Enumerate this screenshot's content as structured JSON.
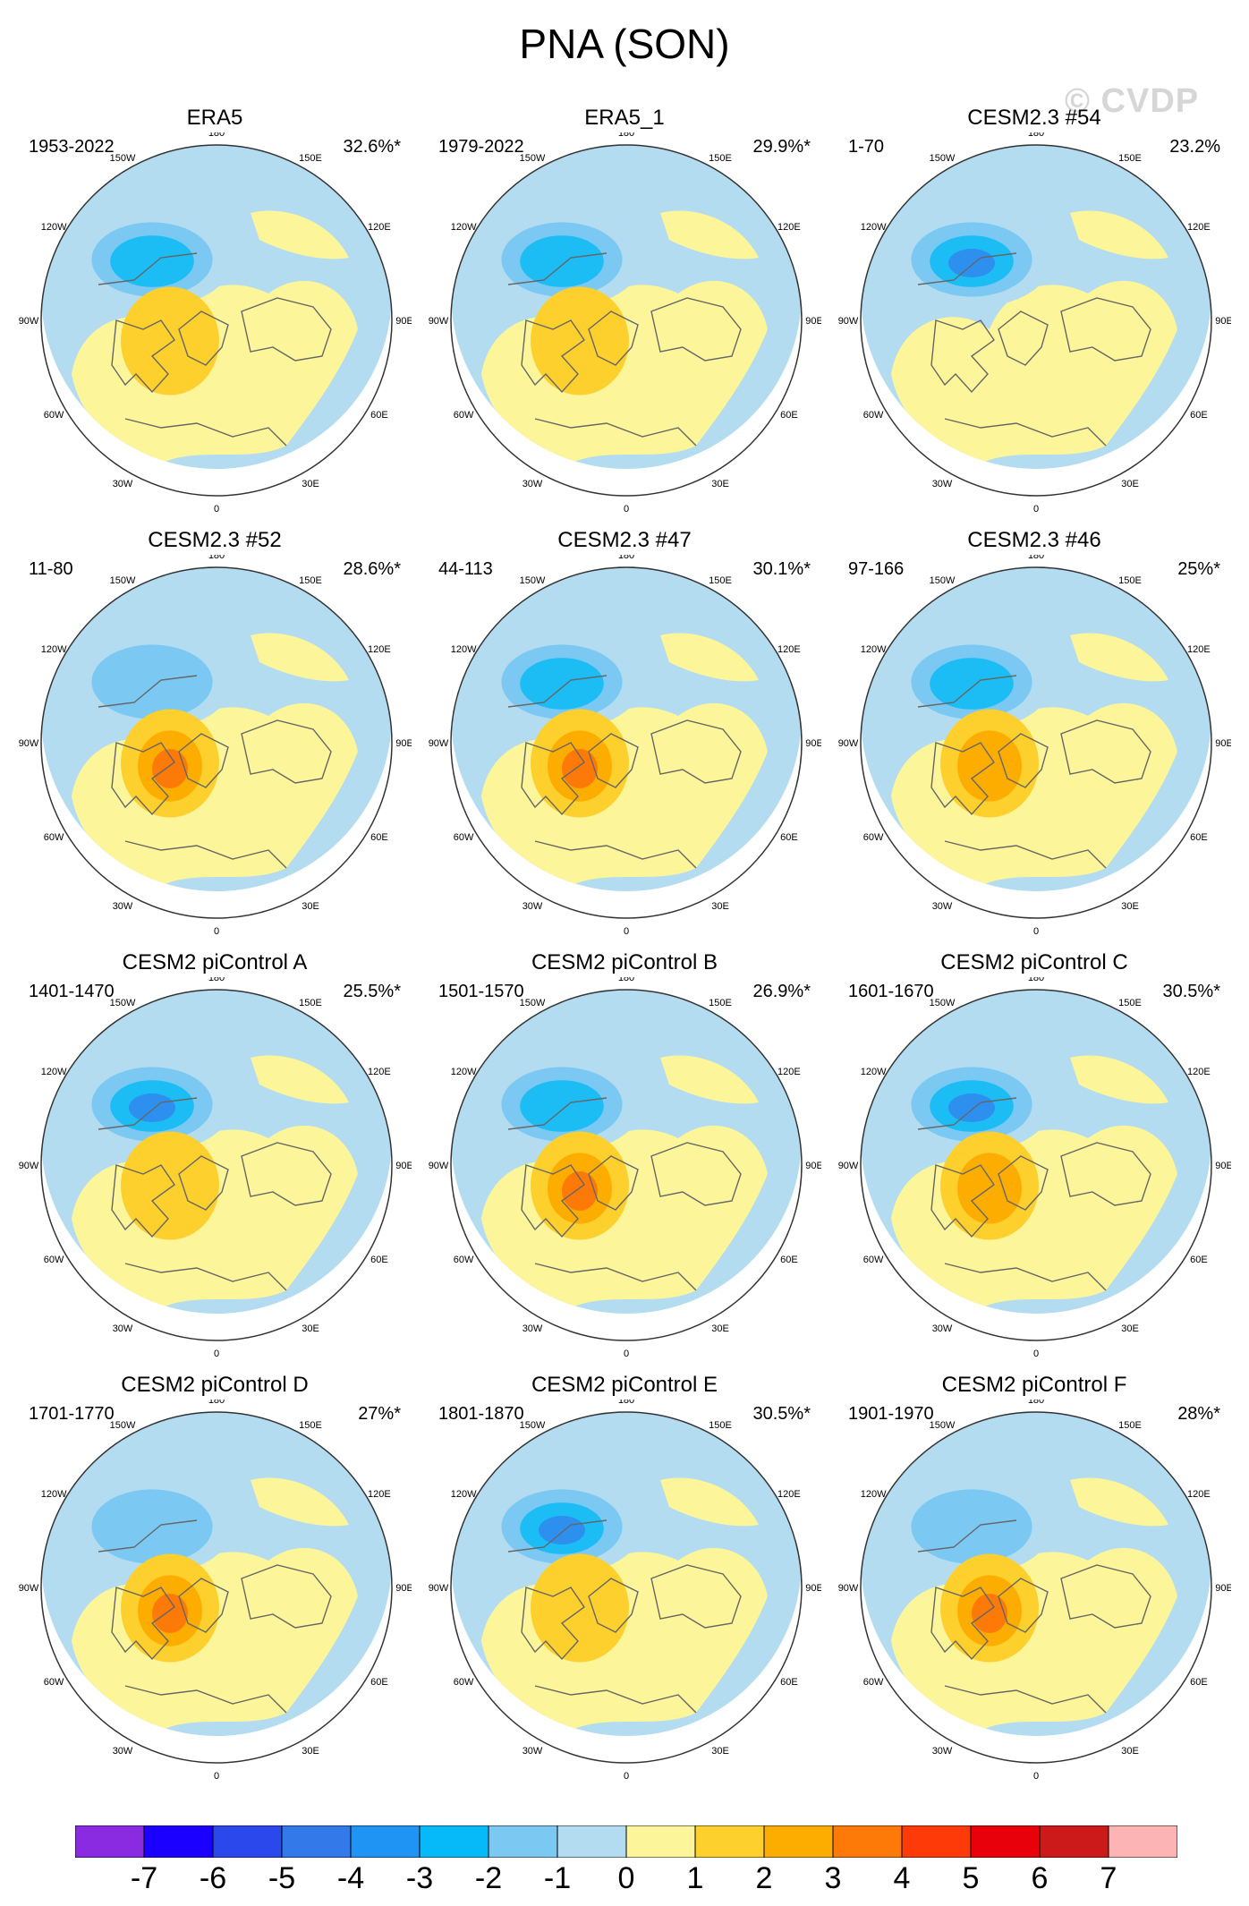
{
  "title": "PNA (SON)",
  "watermark": "© CVDP",
  "colors": {
    "neg1": "#b3dcf1",
    "neg2": "#7bc8f3",
    "neg3": "#1cbcf4",
    "neg4": "#2d90ef",
    "pos1": "#fdf59a",
    "pos2": "#fdd02e",
    "pos3": "#fdad00",
    "pos4": "#fd7a08",
    "coast": "#666666",
    "edge": "#333333"
  },
  "axis_labels": {
    "lon_180": "180",
    "lon_150w": "150W",
    "lon_150e": "150E",
    "lon_120w": "120W",
    "lon_120e": "120E",
    "lon_90w": "90W",
    "lon_90e": "90E",
    "lon_60w": "60W",
    "lon_60e": "60E",
    "lon_30w": "30W",
    "lon_30e": "30E",
    "lon_0": "0"
  },
  "panels": [
    {
      "title": "ERA5",
      "period": "1953-2022",
      "pct": "32.6%*",
      "neg": 3,
      "pos": 2
    },
    {
      "title": "ERA5_1",
      "period": "1979-2022",
      "pct": "29.9%*",
      "neg": 3,
      "pos": 2
    },
    {
      "title": "CESM2.3 #54",
      "period": "1-70",
      "pct": "23.2%",
      "neg": 4,
      "pos": 1
    },
    {
      "title": "CESM2.3 #52",
      "period": "11-80",
      "pct": "28.6%*",
      "neg": 2,
      "pos": 4
    },
    {
      "title": "CESM2.3 #47",
      "period": "44-113",
      "pct": "30.1%*",
      "neg": 3,
      "pos": 4
    },
    {
      "title": "CESM2.3 #46",
      "period": "97-166",
      "pct": "25%*",
      "neg": 3,
      "pos": 3
    },
    {
      "title": "CESM2 piControl A",
      "period": "1401-1470",
      "pct": "25.5%*",
      "neg": 4,
      "pos": 2
    },
    {
      "title": "CESM2 piControl B",
      "period": "1501-1570",
      "pct": "26.9%*",
      "neg": 3,
      "pos": 4
    },
    {
      "title": "CESM2 piControl C",
      "period": "1601-1670",
      "pct": "30.5%*",
      "neg": 4,
      "pos": 3
    },
    {
      "title": "CESM2 piControl D",
      "period": "1701-1770",
      "pct": "27%*",
      "neg": 2,
      "pos": 4
    },
    {
      "title": "CESM2 piControl E",
      "period": "1801-1870",
      "pct": "30.5%*",
      "neg": 4,
      "pos": 2
    },
    {
      "title": "CESM2 piControl F",
      "period": "1901-1970",
      "pct": "28%*",
      "neg": 2,
      "pos": 4
    }
  ],
  "colorbar": {
    "colors": [
      "#8a2be2",
      "#1c00ff",
      "#2a48ec",
      "#3379ea",
      "#1f94f5",
      "#06baf9",
      "#7bc8f3",
      "#b3dcf1",
      "#fdf59a",
      "#fdd02e",
      "#fdad00",
      "#fd7a08",
      "#fd3a08",
      "#e8000b",
      "#cc1a1a",
      "#fdb4b4"
    ],
    "labels": [
      "-7",
      "-6",
      "-5",
      "-4",
      "-3",
      "-2",
      "-1",
      "0",
      "1",
      "2",
      "3",
      "4",
      "5",
      "6",
      "7"
    ]
  }
}
